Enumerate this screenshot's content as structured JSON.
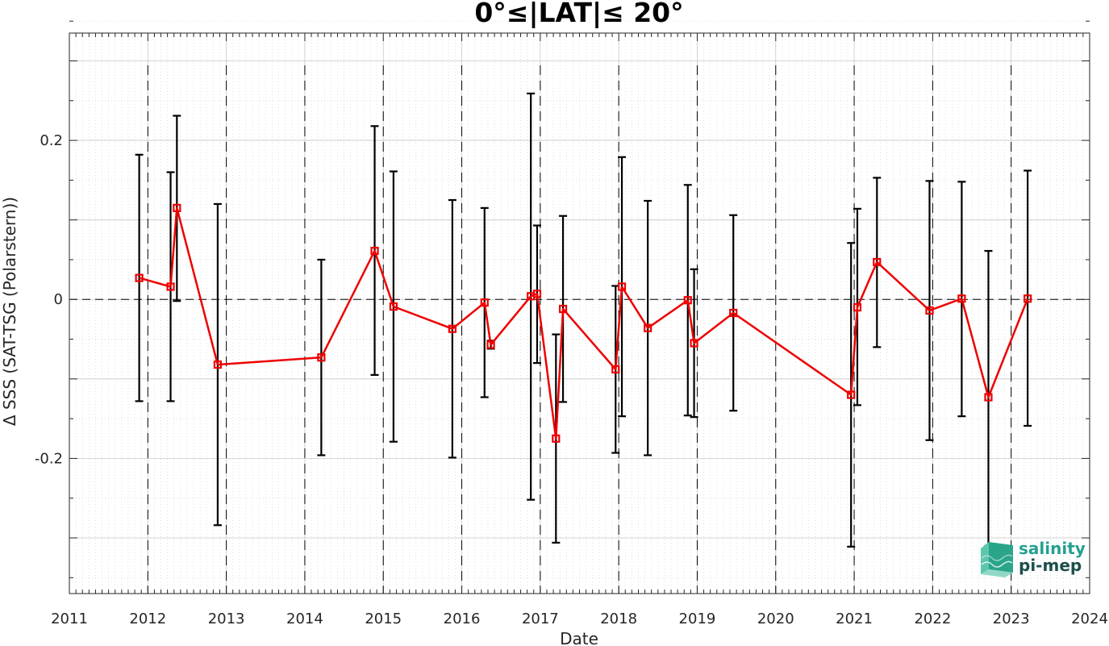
{
  "chart_data": {
    "type": "line",
    "title": "0°≤|LAT|≤ 20°",
    "xlabel": "Date",
    "ylabel": "Δ SSS (SAT-TSG (Polarstern))",
    "xlim": [
      2011,
      2024
    ],
    "ylim": [
      -0.37,
      0.335
    ],
    "x_ticks": [
      "2011",
      "2012",
      "2013",
      "2014",
      "2015",
      "2016",
      "2017",
      "2018",
      "2019",
      "2020",
      "2021",
      "2022",
      "2023",
      "2024"
    ],
    "y_ticks": [
      {
        "value": 0.2,
        "label": "0.2"
      },
      {
        "value": 0,
        "label": "0"
      },
      {
        "value": -0.2,
        "label": "-0.2"
      }
    ],
    "grid": true,
    "zero_line": true,
    "year_separators": true,
    "colors": {
      "series": "#ee0000",
      "errorbar": "#000000",
      "grid": "#d9d9d9"
    },
    "series": [
      {
        "marker": "square",
        "points": [
          {
            "x": 2011.89,
            "y": 0.027,
            "lo": -0.128,
            "hi": 0.182
          },
          {
            "x": 2012.29,
            "y": 0.016,
            "lo": -0.128,
            "hi": 0.16
          },
          {
            "x": 2012.37,
            "y": 0.115,
            "lo": -0.002,
            "hi": 0.231
          },
          {
            "x": 2012.89,
            "y": -0.082,
            "lo": -0.284,
            "hi": 0.12
          },
          {
            "x": 2014.21,
            "y": -0.073,
            "lo": -0.196,
            "hi": 0.05
          },
          {
            "x": 2014.89,
            "y": 0.061,
            "lo": -0.095,
            "hi": 0.218
          },
          {
            "x": 2015.13,
            "y": -0.009,
            "lo": -0.179,
            "hi": 0.161
          },
          {
            "x": 2015.88,
            "y": -0.037,
            "lo": -0.199,
            "hi": 0.125
          },
          {
            "x": 2016.29,
            "y": -0.004,
            "lo": -0.123,
            "hi": 0.115
          },
          {
            "x": 2016.37,
            "y": -0.057,
            "lo": -0.062,
            "hi": -0.052
          },
          {
            "x": 2016.88,
            "y": 0.004,
            "lo": -0.252,
            "hi": 0.259
          },
          {
            "x": 2016.96,
            "y": 0.007,
            "lo": -0.08,
            "hi": 0.093
          },
          {
            "x": 2017.2,
            "y": -0.175,
            "lo": -0.306,
            "hi": -0.044
          },
          {
            "x": 2017.29,
            "y": -0.012,
            "lo": -0.129,
            "hi": 0.105
          },
          {
            "x": 2017.96,
            "y": -0.088,
            "lo": -0.193,
            "hi": 0.017
          },
          {
            "x": 2018.04,
            "y": 0.016,
            "lo": -0.147,
            "hi": 0.179
          },
          {
            "x": 2018.37,
            "y": -0.036,
            "lo": -0.196,
            "hi": 0.124
          },
          {
            "x": 2018.88,
            "y": -0.001,
            "lo": -0.146,
            "hi": 0.144
          },
          {
            "x": 2018.96,
            "y": -0.055,
            "lo": -0.148,
            "hi": 0.038
          },
          {
            "x": 2019.46,
            "y": -0.017,
            "lo": -0.14,
            "hi": 0.106
          },
          {
            "x": 2020.96,
            "y": -0.12,
            "lo": -0.311,
            "hi": 0.071
          },
          {
            "x": 2021.04,
            "y": -0.01,
            "lo": -0.133,
            "hi": 0.114
          },
          {
            "x": 2021.29,
            "y": 0.047,
            "lo": -0.06,
            "hi": 0.153
          },
          {
            "x": 2021.96,
            "y": -0.014,
            "lo": -0.177,
            "hi": 0.149
          },
          {
            "x": 2022.37,
            "y": 0.001,
            "lo": -0.147,
            "hi": 0.148
          },
          {
            "x": 2022.71,
            "y": -0.123,
            "lo": -0.31,
            "hi": 0.061
          },
          {
            "x": 2023.21,
            "y": 0.001,
            "lo": -0.159,
            "hi": 0.162
          }
        ]
      }
    ]
  },
  "logo": {
    "line1": "salinity",
    "line2": "pi-mep"
  }
}
